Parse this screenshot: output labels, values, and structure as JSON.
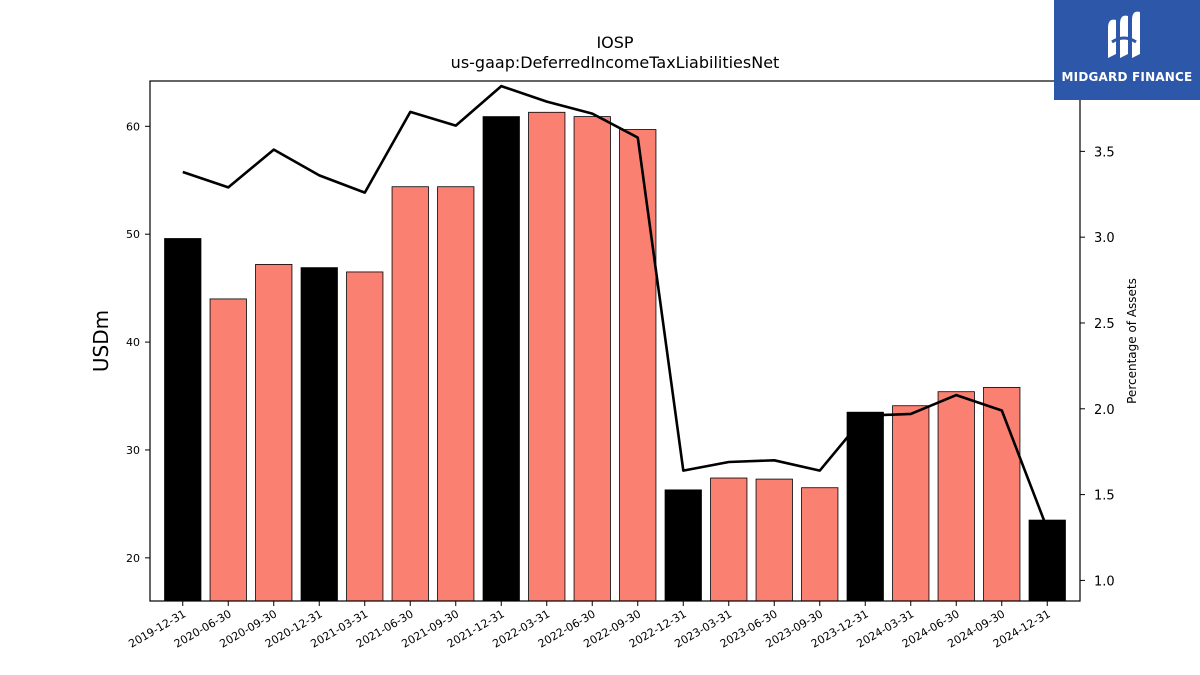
{
  "brand": {
    "name": "MIDGARD FINANCE",
    "logo_icon": "midgard-logo-icon",
    "logo_color": "#2d57a8"
  },
  "chart_data": {
    "type": "bar",
    "title": "IOSP",
    "subtitle": "us-gaap:DeferredIncomeTaxLiabilitiesNet",
    "ylabel": "USDm",
    "y2label": "Percentage of Assets",
    "ylim": [
      16.0,
      64.2
    ],
    "y2lim": [
      0.88,
      3.91
    ],
    "yticks": [
      20,
      30,
      40,
      50,
      60
    ],
    "y2ticks": [
      1.0,
      1.5,
      2.0,
      2.5,
      3.0,
      3.5
    ],
    "categories": [
      "2019-12-31",
      "2020-06-30",
      "2020-09-30",
      "2020-12-31",
      "2021-03-31",
      "2021-06-30",
      "2021-09-30",
      "2021-12-31",
      "2022-03-31",
      "2022-06-30",
      "2022-09-30",
      "2022-12-31",
      "2023-03-31",
      "2023-06-30",
      "2023-09-30",
      "2023-12-31",
      "2024-03-31",
      "2024-06-30",
      "2024-09-30",
      "2024-12-31"
    ],
    "series": [
      {
        "type": "bar",
        "axis": "left",
        "values": [
          49.6,
          44.0,
          47.2,
          46.9,
          46.5,
          54.4,
          54.4,
          60.9,
          61.3,
          60.9,
          59.7,
          26.3,
          27.4,
          27.3,
          26.5,
          33.5,
          34.1,
          35.4,
          35.8,
          23.5
        ],
        "colors": [
          "#000000",
          "#fa8072",
          "#fa8072",
          "#000000",
          "#fa8072",
          "#fa8072",
          "#fa8072",
          "#000000",
          "#fa8072",
          "#fa8072",
          "#fa8072",
          "#000000",
          "#fa8072",
          "#fa8072",
          "#fa8072",
          "#000000",
          "#fa8072",
          "#fa8072",
          "#fa8072",
          "#000000"
        ]
      },
      {
        "type": "line",
        "axis": "right",
        "color": "#000000",
        "values": [
          3.38,
          3.29,
          3.51,
          3.36,
          3.26,
          3.73,
          3.65,
          3.88,
          3.79,
          3.72,
          3.58,
          1.64,
          1.69,
          1.7,
          1.64,
          1.96,
          1.97,
          2.08,
          1.99,
          1.3
        ]
      }
    ]
  }
}
